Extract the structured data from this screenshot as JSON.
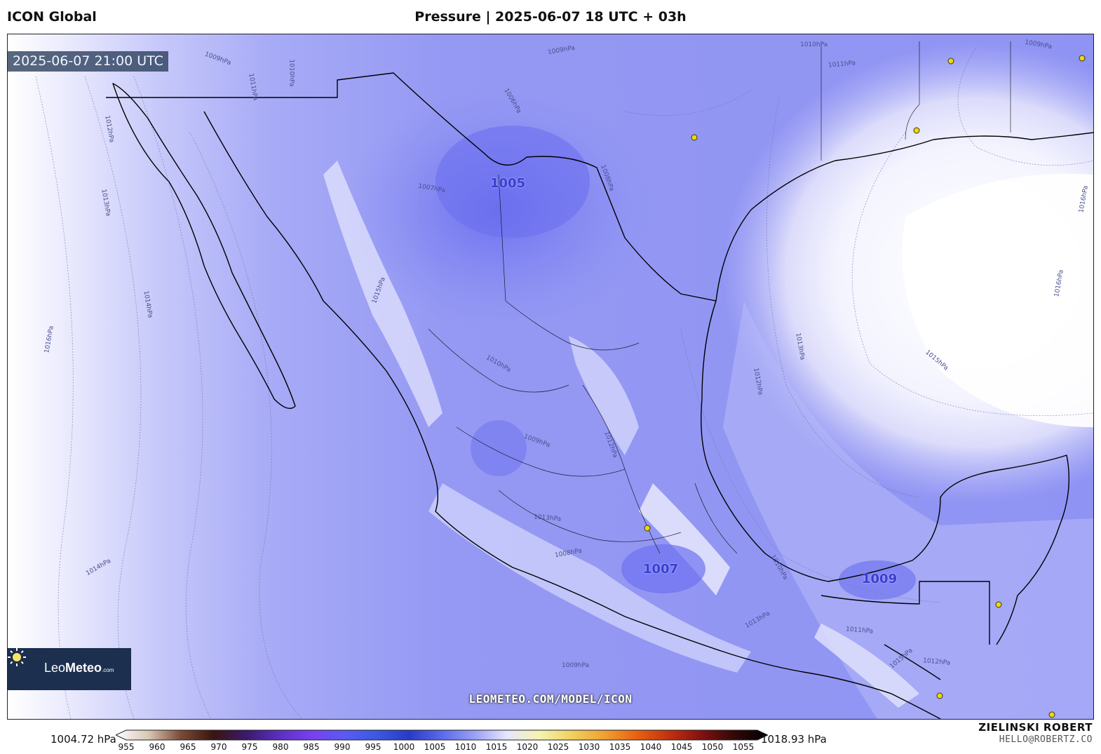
{
  "header": {
    "model": "ICON Global",
    "title": "Pressure | 2025-06-07 18 UTC + 03h"
  },
  "map": {
    "valid_time": "2025-06-07 21:00 UTC",
    "watermark_url": "LEOMETEO.COM/MODEL/ICON",
    "logo": {
      "brand_light": "Leo",
      "brand_bold": "Meteo",
      "suffix": ".com"
    },
    "contour_labels": [
      "1009hPa",
      "1010hPa",
      "1011hPa",
      "1012hPa",
      "1013hPa",
      "1014hPa",
      "1015hPa",
      "1016hPa",
      "1009hPa",
      "1010hPa",
      "1011hPa",
      "1012hPa",
      "1013hPa",
      "1014hPa",
      "1015hPa",
      "1016hPa",
      "1006hPa",
      "1007hPa",
      "1008hPa",
      "1009hPa",
      "1010hPa",
      "1011hPa",
      "1012hPa",
      "1013hPa",
      "1008hPa",
      "1009hPa",
      "1010hPa",
      "1012hPa",
      "1013hPa",
      "1015hPa",
      "1016hPa",
      "1009hPa"
    ],
    "lows": [
      {
        "label": "1005"
      },
      {
        "label": "1007"
      },
      {
        "label": "1009"
      }
    ],
    "colors": {
      "deep_low": "#6b70f0",
      "mid": "#8f93f3",
      "light": "#c9cbfa",
      "high": "#ffffff",
      "land_border": "#000000"
    }
  },
  "colorbar": {
    "min_label": "1004.72 hPa",
    "max_label": "1018.93 hPa",
    "ticks": [
      "955",
      "960",
      "965",
      "970",
      "975",
      "980",
      "985",
      "990",
      "995",
      "1000",
      "1005",
      "1010",
      "1015",
      "1020",
      "1025",
      "1030",
      "1035",
      "1040",
      "1045",
      "1050",
      "1055"
    ],
    "stops": [
      "#ffffff",
      "#d8c7b5",
      "#7a4a35",
      "#3a1410",
      "#3a1a6a",
      "#5a2fc0",
      "#7a3ff0",
      "#5a5af5",
      "#3a5ae0",
      "#2a3ac8",
      "#5a6ae8",
      "#9aa0f6",
      "#e6e6ff",
      "#f6f3b0",
      "#f0d060",
      "#f0a030",
      "#e86010",
      "#c03010",
      "#801010",
      "#300808",
      "#000000"
    ]
  },
  "credit": {
    "author": "ZIELINSKI ROBERT",
    "email": "HELLO@ROBERTZ.CO"
  }
}
